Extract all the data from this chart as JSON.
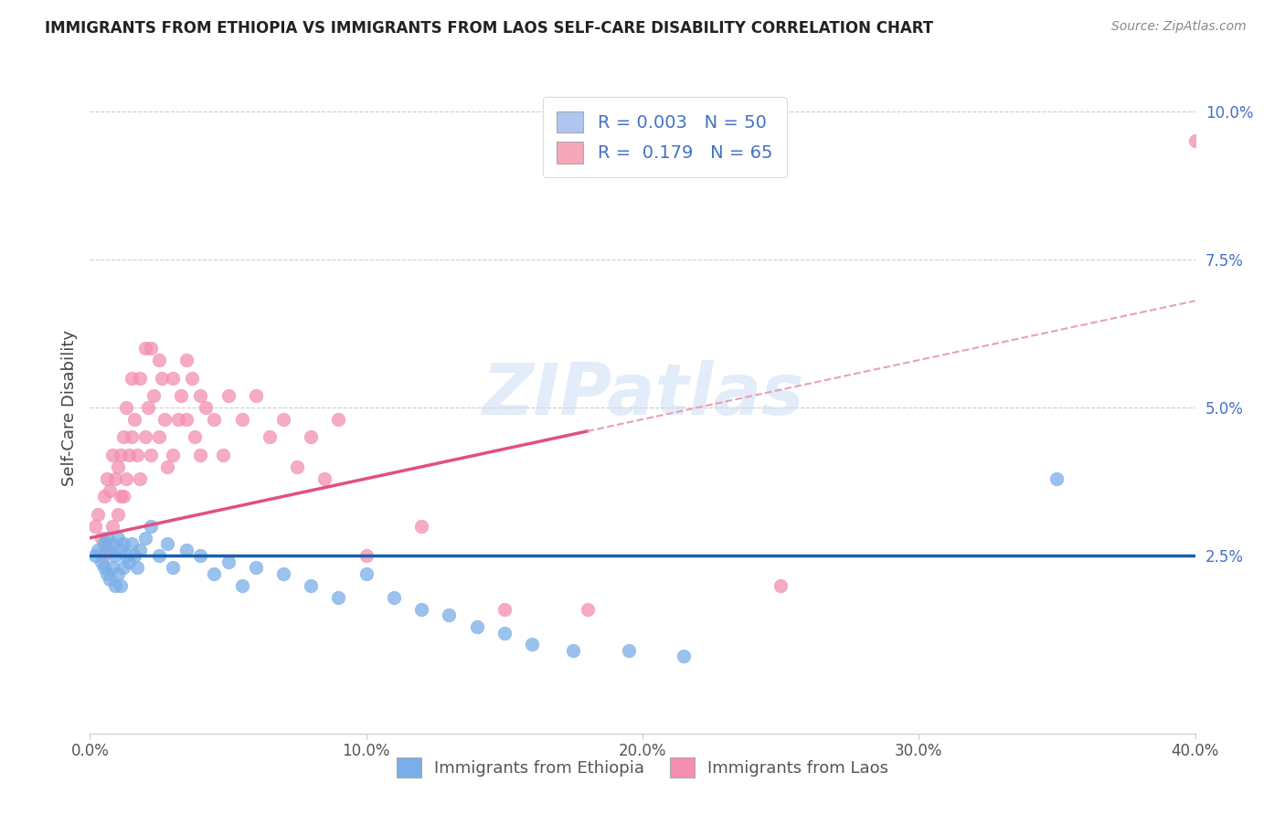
{
  "title": "IMMIGRANTS FROM ETHIOPIA VS IMMIGRANTS FROM LAOS SELF-CARE DISABILITY CORRELATION CHART",
  "source": "Source: ZipAtlas.com",
  "ylabel": "Self-Care Disability",
  "watermark": "ZIPatlas",
  "legend": {
    "ethiopia": {
      "R": "0.003",
      "N": "50",
      "color": "#aec6f0"
    },
    "laos": {
      "R": "0.179",
      "N": "65",
      "color": "#f4a7b9"
    }
  },
  "xlim": [
    0.0,
    0.4
  ],
  "ylim": [
    -0.005,
    0.105
  ],
  "yticks": [
    0.025,
    0.05,
    0.075,
    0.1
  ],
  "ytick_labels": [
    "2.5%",
    "5.0%",
    "7.5%",
    "10.0%"
  ],
  "xticks": [
    0.0,
    0.1,
    0.2,
    0.3,
    0.4
  ],
  "xtick_labels": [
    "0.0%",
    "10.0%",
    "20.0%",
    "30.0%",
    "40.0%"
  ],
  "ethiopia_color": "#7aaee8",
  "laos_color": "#f48fb1",
  "ethiopia_trendline_color": "#1a5fa8",
  "laos_trendline_color": "#e05080",
  "laos_trendline_dashed_color": "#e8a0b8",
  "background_color": "#ffffff",
  "ethiopia_trendline_start_y": 0.025,
  "ethiopia_trendline_end_y": 0.025,
  "laos_trendline_start_y": 0.028,
  "laos_trendline_end_y": 0.068,
  "ethiopia_x": [
    0.002,
    0.003,
    0.004,
    0.005,
    0.005,
    0.006,
    0.006,
    0.007,
    0.007,
    0.008,
    0.008,
    0.009,
    0.009,
    0.01,
    0.01,
    0.011,
    0.011,
    0.012,
    0.012,
    0.013,
    0.014,
    0.015,
    0.016,
    0.017,
    0.018,
    0.02,
    0.022,
    0.025,
    0.028,
    0.03,
    0.035,
    0.04,
    0.045,
    0.05,
    0.055,
    0.06,
    0.07,
    0.08,
    0.09,
    0.1,
    0.11,
    0.12,
    0.13,
    0.14,
    0.15,
    0.16,
    0.175,
    0.195,
    0.215,
    0.35
  ],
  "ethiopia_y": [
    0.025,
    0.026,
    0.024,
    0.027,
    0.023,
    0.028,
    0.022,
    0.026,
    0.021,
    0.027,
    0.023,
    0.025,
    0.02,
    0.028,
    0.022,
    0.026,
    0.02,
    0.027,
    0.023,
    0.025,
    0.024,
    0.027,
    0.025,
    0.023,
    0.026,
    0.028,
    0.03,
    0.025,
    0.027,
    0.023,
    0.026,
    0.025,
    0.022,
    0.024,
    0.02,
    0.023,
    0.022,
    0.02,
    0.018,
    0.022,
    0.018,
    0.016,
    0.015,
    0.013,
    0.012,
    0.01,
    0.009,
    0.009,
    0.008,
    0.038
  ],
  "laos_x": [
    0.002,
    0.003,
    0.004,
    0.005,
    0.005,
    0.006,
    0.006,
    0.007,
    0.008,
    0.008,
    0.009,
    0.01,
    0.01,
    0.011,
    0.011,
    0.012,
    0.012,
    0.013,
    0.013,
    0.014,
    0.015,
    0.015,
    0.016,
    0.017,
    0.018,
    0.018,
    0.02,
    0.02,
    0.021,
    0.022,
    0.022,
    0.023,
    0.025,
    0.025,
    0.026,
    0.027,
    0.028,
    0.03,
    0.03,
    0.032,
    0.033,
    0.035,
    0.035,
    0.037,
    0.038,
    0.04,
    0.04,
    0.042,
    0.045,
    0.048,
    0.05,
    0.055,
    0.06,
    0.065,
    0.07,
    0.075,
    0.08,
    0.085,
    0.09,
    0.1,
    0.12,
    0.15,
    0.18,
    0.25,
    0.4
  ],
  "laos_y": [
    0.03,
    0.032,
    0.028,
    0.035,
    0.025,
    0.038,
    0.026,
    0.036,
    0.042,
    0.03,
    0.038,
    0.04,
    0.032,
    0.042,
    0.035,
    0.045,
    0.035,
    0.05,
    0.038,
    0.042,
    0.055,
    0.045,
    0.048,
    0.042,
    0.055,
    0.038,
    0.06,
    0.045,
    0.05,
    0.06,
    0.042,
    0.052,
    0.058,
    0.045,
    0.055,
    0.048,
    0.04,
    0.055,
    0.042,
    0.048,
    0.052,
    0.058,
    0.048,
    0.055,
    0.045,
    0.052,
    0.042,
    0.05,
    0.048,
    0.042,
    0.052,
    0.048,
    0.052,
    0.045,
    0.048,
    0.04,
    0.045,
    0.038,
    0.048,
    0.025,
    0.03,
    0.016,
    0.016,
    0.02,
    0.095
  ]
}
